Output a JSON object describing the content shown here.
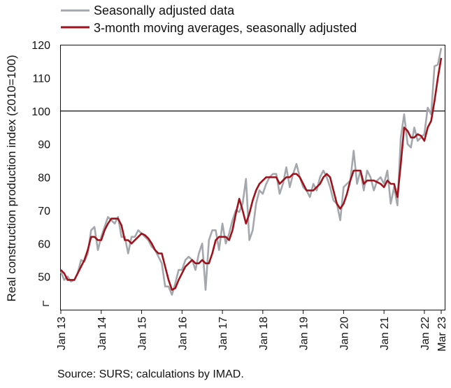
{
  "chart_data": {
    "type": "line",
    "title": "",
    "xlabel": "",
    "ylabel": "Real construction production index (2010=100)",
    "ylim": [
      40,
      120
    ],
    "yticks": [
      50,
      60,
      70,
      80,
      90,
      100,
      110,
      120
    ],
    "xlim": [
      "Jan 13",
      "Mar 23"
    ],
    "xticks": [
      "Jan 13",
      "Jan 14",
      "Jan 15",
      "Jan 16",
      "Jan 17",
      "Jan 18",
      "Jan 19",
      "Jan 20",
      "Jan 21",
      "Jan 22",
      "Mar 23"
    ],
    "reference_line": 100,
    "legend_position": "top-left",
    "series": [
      {
        "name": "Seasonally adjusted data",
        "color": "#a4a7ab",
        "values": [
          51.5,
          49,
          50,
          48.5,
          49,
          51,
          55,
          54.5,
          57,
          64,
          65,
          58,
          62,
          65,
          68,
          67,
          66,
          68,
          62,
          62,
          57,
          62,
          62,
          64,
          63,
          62,
          61,
          59,
          58,
          56,
          54,
          47,
          47,
          44.5,
          48,
          52,
          52,
          55,
          56,
          55,
          52,
          57,
          60,
          46,
          61,
          64,
          64,
          58,
          66,
          60,
          63,
          67,
          70,
          69.5,
          72,
          79.5,
          61,
          64,
          72,
          76,
          75,
          78,
          80,
          81,
          81,
          75,
          78,
          83,
          77,
          81,
          84,
          80,
          77,
          76,
          74,
          78,
          76,
          80,
          82,
          80,
          77,
          73,
          72,
          67,
          77,
          78,
          79,
          88,
          78,
          82,
          76,
          82,
          80,
          76,
          79,
          80,
          78,
          82,
          72,
          77,
          71.5,
          92,
          99,
          90,
          89,
          95,
          91,
          92,
          93,
          101,
          99,
          113.5,
          114,
          119
        ]
      },
      {
        "name": "3-month moving averages, seasonally adjusted",
        "color": "#a0121b",
        "values": [
          52,
          51,
          49,
          49,
          49,
          51,
          53,
          55,
          58,
          62,
          62,
          61,
          61,
          64,
          66,
          67.5,
          67.5,
          67.5,
          65.5,
          61,
          61,
          60,
          61,
          62,
          63,
          62.5,
          61.5,
          60,
          58,
          57,
          57,
          53,
          49,
          46,
          46.5,
          49,
          51,
          53,
          54,
          55,
          54,
          54,
          55,
          54,
          54,
          57,
          61,
          62,
          62,
          62,
          61,
          64,
          69,
          73.5,
          70,
          66,
          69,
          73,
          76,
          78,
          79,
          80,
          80,
          80,
          80,
          78,
          79,
          80,
          80,
          81,
          81,
          80,
          78,
          76,
          76,
          76,
          77,
          78,
          80,
          81,
          80,
          76,
          72,
          70.5,
          72,
          75,
          79,
          82,
          82,
          82,
          78,
          79,
          79,
          79,
          78.5,
          78,
          77,
          79,
          78,
          78,
          74,
          84,
          95,
          94,
          92,
          92,
          93,
          92.5,
          91,
          95,
          97,
          103,
          110,
          116
        ]
      }
    ]
  },
  "legend": [
    {
      "label": "Seasonally adjusted data",
      "color": "#a4a7ab"
    },
    {
      "label": "3-month moving averages, seasonally adjusted",
      "color": "#a0121b"
    }
  ],
  "source_note": "Source: SURS; calculations by IMAD."
}
